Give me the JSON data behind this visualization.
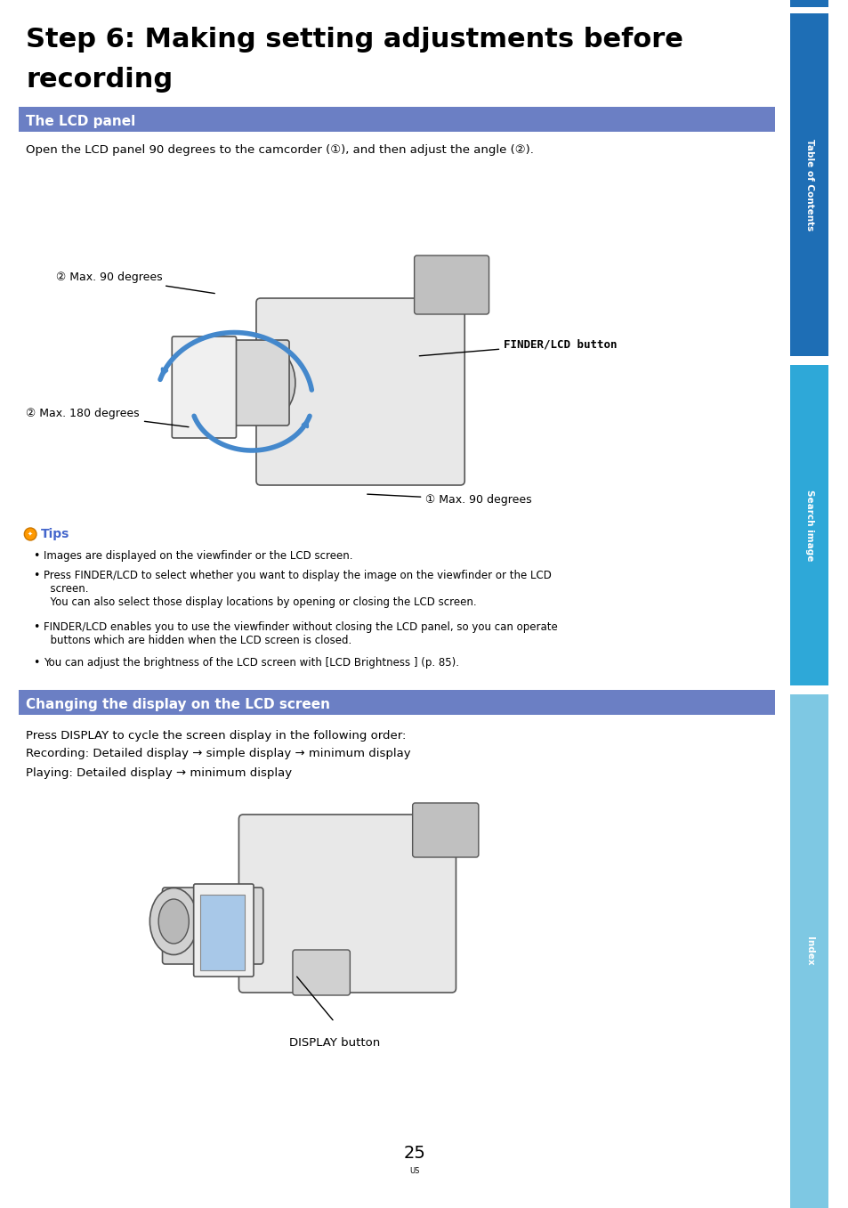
{
  "title_line1": "Step 6: Making setting adjustments before",
  "title_line2": "recording",
  "section1_title": "The LCD panel",
  "section2_title": "Changing the display on the LCD screen",
  "section1_body": "Open the LCD panel 90 degrees to the camcorder (①), and then adjust the angle (②).",
  "tips_header": "Tips",
  "tips": [
    "Images are displayed on the viewfinder or the LCD screen.",
    "Press FINDER/LCD to select whether you want to display the image on the viewfinder or the LCD\nscreen.\n  You can also select those display locations by opening or closing the LCD screen.",
    "FINDER/LCD enables you to use the viewfinder without closing the LCD panel, so you can operate\nbuttons which are hidden when the LCD screen is closed.",
    "You can adjust the brightness of the LCD screen with [LCD Brightness ] (p. 85)."
  ],
  "section2_body_line1": "Press DISPLAY to cycle the screen display in the following order:",
  "section2_body_line2": "Recording: Detailed display → simple display → minimum display",
  "section2_body_line3": "Playing: Detailed display → minimum display",
  "display_button_label": "DISPLAY button",
  "finder_lcd_label": "FINDER/LCD button",
  "max90_label1": "② Max. 90 degrees",
  "max180_label": "② Max. 180 degrees",
  "max90_label2": "① Max. 90 degrees",
  "page_number": "25",
  "page_label": "US",
  "sidebar_tab1": "Table of Contents",
  "sidebar_tab2": "Search image",
  "sidebar_tab3": "Index",
  "sidebar_color1": "#1e6eb5",
  "sidebar_color2": "#2ea8d8",
  "sidebar_color3": "#7ec8e3",
  "header_bg_color": "#6b7fc4",
  "header_text_color": "#ffffff",
  "bg_color": "#ffffff",
  "text_color": "#000000",
  "title_font_size": 22,
  "section_font_size": 11,
  "body_font_size": 9,
  "tips_color": "#4466cc"
}
